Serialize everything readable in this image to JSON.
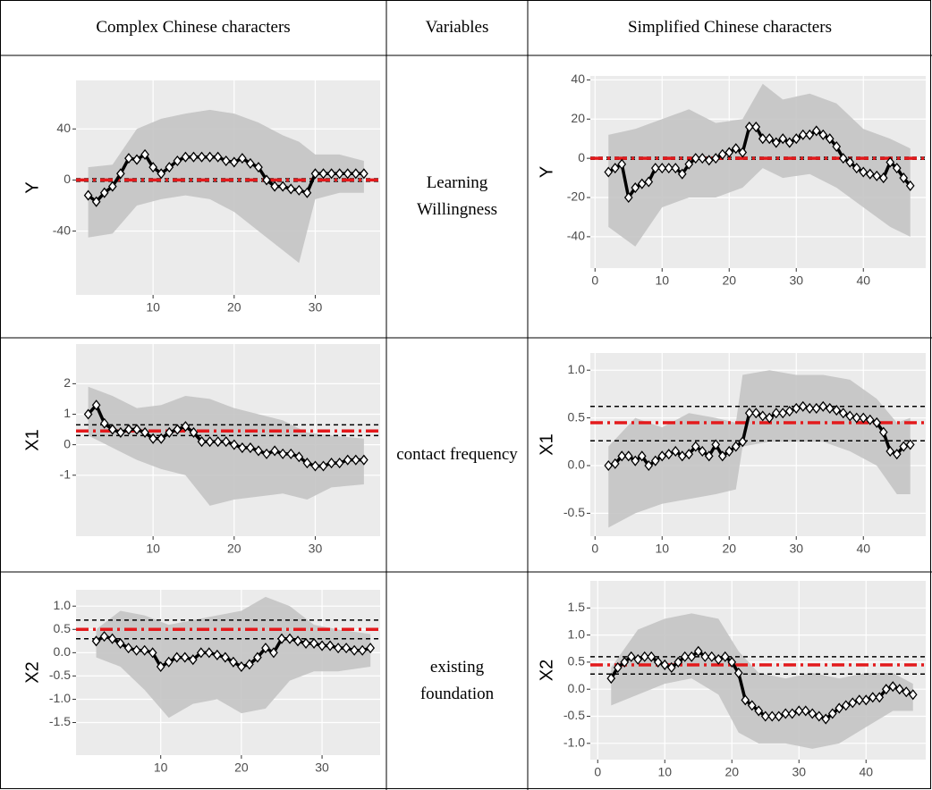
{
  "table": {
    "header": [
      "Complex Chinese characters",
      "Variables",
      "Simplified Chinese characters"
    ],
    "rows": [
      "Learning Willingness",
      "contact frequency",
      "existing foundation"
    ]
  },
  "chart_data": [
    {
      "type": "line",
      "ylabel": "Y",
      "x": [
        2,
        3,
        4,
        5,
        6,
        7,
        8,
        9,
        10,
        11,
        12,
        13,
        14,
        15,
        16,
        17,
        18,
        19,
        20,
        21,
        22,
        23,
        24,
        25,
        26,
        27,
        28,
        29,
        30,
        31,
        32,
        33,
        34,
        35,
        36
      ],
      "series": [
        {
          "color": "#000000",
          "values": [
            -12,
            -17,
            -10,
            -5,
            5,
            17,
            16,
            20,
            10,
            5,
            10,
            15,
            18,
            18,
            18,
            18,
            18,
            15,
            14,
            17,
            13,
            10,
            0,
            -5,
            -5,
            -7,
            -8,
            -10,
            5,
            5,
            5,
            5,
            5,
            5,
            5
          ]
        }
      ],
      "band": {
        "color": "#c4c4c4",
        "x": [
          2,
          5,
          8,
          11,
          14,
          17,
          20,
          23,
          26,
          28,
          30,
          33,
          36
        ],
        "upper": [
          10,
          12,
          40,
          48,
          52,
          55,
          52,
          45,
          35,
          30,
          20,
          20,
          15
        ],
        "lower": [
          -45,
          -42,
          -20,
          -15,
          -12,
          -15,
          -25,
          -40,
          -55,
          -65,
          -15,
          -10,
          -10
        ]
      },
      "hlines": {
        "mean": 0,
        "lower": -1,
        "upper": 1
      },
      "xlim": [
        0.5,
        38
      ],
      "ylim": [
        -90,
        78
      ],
      "xticks": [
        10,
        20,
        30
      ],
      "yticks": [
        -40,
        0,
        40
      ]
    },
    {
      "type": "line",
      "ylabel": "Y",
      "x": [
        2,
        3,
        4,
        5,
        6,
        7,
        8,
        9,
        10,
        11,
        12,
        13,
        14,
        15,
        16,
        17,
        18,
        19,
        20,
        21,
        22,
        23,
        24,
        25,
        26,
        27,
        28,
        29,
        30,
        31,
        32,
        33,
        34,
        35,
        36,
        37,
        38,
        39,
        40,
        41,
        42,
        43,
        44,
        45,
        46,
        47
      ],
      "series": [
        {
          "color": "#000000",
          "values": [
            -7,
            -5,
            -3,
            -20,
            -15,
            -13,
            -12,
            -5,
            -5,
            -5,
            -5,
            -8,
            -3,
            0,
            0,
            -1,
            0,
            2,
            3,
            5,
            3,
            16,
            16,
            10,
            10,
            8,
            10,
            8,
            10,
            12,
            12,
            14,
            12,
            10,
            6,
            0,
            -2,
            -5,
            -7,
            -8,
            -9,
            -10,
            -2,
            -5,
            -10,
            -14
          ]
        }
      ],
      "band": {
        "color": "#c4c4c4",
        "x": [
          2,
          6,
          10,
          14,
          18,
          22,
          25,
          28,
          32,
          36,
          40,
          44,
          47
        ],
        "upper": [
          12,
          15,
          20,
          25,
          18,
          20,
          38,
          30,
          33,
          28,
          15,
          10,
          5
        ],
        "lower": [
          -35,
          -45,
          -25,
          -20,
          -20,
          -15,
          -5,
          -10,
          -8,
          -15,
          -25,
          -35,
          -40
        ]
      },
      "hlines": {
        "mean": 0,
        "lower": -0.5,
        "upper": 0.5
      },
      "xlim": [
        -0.7,
        49.3
      ],
      "ylim": [
        -56,
        42
      ],
      "xticks": [
        0,
        10,
        20,
        30,
        40
      ],
      "yticks": [
        -40,
        -20,
        0,
        20,
        40
      ]
    },
    {
      "type": "line",
      "ylabel": "X1",
      "x": [
        2,
        3,
        4,
        5,
        6,
        7,
        8,
        9,
        10,
        11,
        12,
        13,
        14,
        15,
        16,
        17,
        18,
        19,
        20,
        21,
        22,
        23,
        24,
        25,
        26,
        27,
        28,
        29,
        30,
        31,
        32,
        33,
        34,
        35,
        36
      ],
      "series": [
        {
          "color": "#000000",
          "values": [
            1.0,
            1.3,
            0.7,
            0.5,
            0.4,
            0.5,
            0.5,
            0.4,
            0.2,
            0.2,
            0.4,
            0.5,
            0.6,
            0.4,
            0.1,
            0.1,
            0.1,
            0.1,
            0.0,
            -0.1,
            -0.1,
            -0.2,
            -0.3,
            -0.2,
            -0.3,
            -0.3,
            -0.4,
            -0.6,
            -0.7,
            -0.7,
            -0.6,
            -0.6,
            -0.5,
            -0.5,
            -0.5
          ]
        }
      ],
      "band": {
        "color": "#c4c4c4",
        "x": [
          2,
          5,
          8,
          11,
          14,
          17,
          20,
          23,
          26,
          29,
          32,
          36
        ],
        "upper": [
          1.9,
          1.6,
          1.2,
          1.3,
          1.6,
          1.5,
          1.2,
          1.0,
          0.8,
          0.4,
          0.3,
          0.2
        ],
        "lower": [
          0.3,
          -0.1,
          -0.5,
          -0.8,
          -1.0,
          -2.0,
          -1.8,
          -1.7,
          -1.6,
          -1.8,
          -1.4,
          -1.3
        ]
      },
      "hlines": {
        "mean": 0.45,
        "lower": 0.3,
        "upper": 0.65
      },
      "xlim": [
        0.5,
        38
      ],
      "ylim": [
        -3.0,
        3.3
      ],
      "xticks": [
        10,
        20,
        30
      ],
      "yticks": [
        -1,
        0,
        1,
        2
      ]
    },
    {
      "type": "line",
      "ylabel": "X1",
      "x": [
        2,
        3,
        4,
        5,
        6,
        7,
        8,
        9,
        10,
        11,
        12,
        13,
        14,
        15,
        16,
        17,
        18,
        19,
        20,
        21,
        22,
        23,
        24,
        25,
        26,
        27,
        28,
        29,
        30,
        31,
        32,
        33,
        34,
        35,
        36,
        37,
        38,
        39,
        40,
        41,
        42,
        43,
        44,
        45,
        46,
        47
      ],
      "series": [
        {
          "color": "#000000",
          "values": [
            0.0,
            0.02,
            0.1,
            0.1,
            0.05,
            0.1,
            0.0,
            0.05,
            0.1,
            0.12,
            0.15,
            0.1,
            0.12,
            0.2,
            0.15,
            0.1,
            0.22,
            0.1,
            0.15,
            0.2,
            0.25,
            0.55,
            0.55,
            0.52,
            0.5,
            0.55,
            0.55,
            0.57,
            0.6,
            0.62,
            0.6,
            0.6,
            0.62,
            0.6,
            0.58,
            0.55,
            0.52,
            0.5,
            0.5,
            0.48,
            0.45,
            0.35,
            0.15,
            0.12,
            0.2,
            0.22
          ]
        }
      ],
      "band": {
        "color": "#c4c4c4",
        "x": [
          2,
          6,
          10,
          14,
          18,
          21,
          22,
          26,
          30,
          34,
          38,
          42,
          45,
          47
        ],
        "upper": [
          0.2,
          0.5,
          0.4,
          0.55,
          0.5,
          0.45,
          0.95,
          1.0,
          0.95,
          0.95,
          0.9,
          0.7,
          0.45,
          0.5
        ],
        "lower": [
          -0.65,
          -0.5,
          -0.4,
          -0.35,
          -0.3,
          -0.25,
          0.2,
          0.25,
          0.25,
          0.25,
          0.15,
          0.0,
          -0.3,
          -0.3
        ]
      },
      "hlines": {
        "mean": 0.45,
        "lower": 0.26,
        "upper": 0.62
      },
      "xlim": [
        -0.7,
        49.3
      ],
      "ylim": [
        -0.74,
        1.18
      ],
      "xticks": [
        0,
        10,
        20,
        30,
        40
      ],
      "yticks": [
        {
          "value": -0.5,
          "label": "-0.5"
        },
        {
          "value": 0,
          "label": "0.0"
        },
        {
          "value": 0.5,
          "label": "0.5"
        },
        {
          "value": 1,
          "label": "1.0"
        }
      ]
    },
    {
      "type": "line",
      "ylabel": "X2",
      "x": [
        2,
        3,
        4,
        5,
        6,
        7,
        8,
        9,
        10,
        11,
        12,
        13,
        14,
        15,
        16,
        17,
        18,
        19,
        20,
        21,
        22,
        23,
        24,
        25,
        26,
        27,
        28,
        29,
        30,
        31,
        32,
        33,
        34,
        35,
        36
      ],
      "series": [
        {
          "color": "#000000",
          "values": [
            0.25,
            0.35,
            0.3,
            0.2,
            0.1,
            0.05,
            0.05,
            0.0,
            -0.3,
            -0.2,
            -0.1,
            -0.1,
            -0.15,
            0.0,
            0.0,
            -0.05,
            -0.1,
            -0.2,
            -0.3,
            -0.25,
            -0.1,
            0.1,
            0.0,
            0.3,
            0.3,
            0.25,
            0.2,
            0.2,
            0.15,
            0.15,
            0.1,
            0.1,
            0.05,
            0.05,
            0.1
          ]
        }
      ],
      "band": {
        "color": "#c4c4c4",
        "x": [
          2,
          5,
          8,
          11,
          14,
          17,
          20,
          23,
          26,
          29,
          32,
          36
        ],
        "upper": [
          0.5,
          0.9,
          0.8,
          0.6,
          0.7,
          0.8,
          0.9,
          1.2,
          1.0,
          0.6,
          0.5,
          0.4
        ],
        "lower": [
          -0.1,
          -0.3,
          -0.8,
          -1.4,
          -1.1,
          -1.0,
          -1.3,
          -1.2,
          -0.6,
          -0.4,
          -0.4,
          -0.3
        ]
      },
      "hlines": {
        "mean": 0.5,
        "lower": 0.3,
        "upper": 0.7
      },
      "xlim": [
        -0.5,
        37.2
      ],
      "ylim": [
        -2.2,
        1.35
      ],
      "xticks": [
        10,
        20,
        30
      ],
      "yticks": [
        {
          "value": -1.5,
          "label": "-1.5"
        },
        {
          "value": -1,
          "label": "-1.0"
        },
        {
          "value": -0.5,
          "label": "-0.5"
        },
        {
          "value": 0,
          "label": "0.0"
        },
        {
          "value": 0.5,
          "label": "0.5"
        },
        {
          "value": 1,
          "label": "1.0"
        }
      ]
    },
    {
      "type": "line",
      "ylabel": "X2",
      "x": [
        2,
        3,
        4,
        5,
        6,
        7,
        8,
        9,
        10,
        11,
        12,
        13,
        14,
        15,
        16,
        17,
        18,
        19,
        20,
        21,
        22,
        23,
        24,
        25,
        26,
        27,
        28,
        29,
        30,
        31,
        32,
        33,
        34,
        35,
        36,
        37,
        38,
        39,
        40,
        41,
        42,
        43,
        44,
        45,
        46,
        47
      ],
      "series": [
        {
          "color": "#000000",
          "values": [
            0.2,
            0.4,
            0.5,
            0.6,
            0.55,
            0.6,
            0.6,
            0.5,
            0.45,
            0.4,
            0.5,
            0.6,
            0.6,
            0.7,
            0.6,
            0.6,
            0.55,
            0.6,
            0.5,
            0.3,
            -0.2,
            -0.3,
            -0.4,
            -0.5,
            -0.5,
            -0.5,
            -0.45,
            -0.45,
            -0.4,
            -0.4,
            -0.45,
            -0.5,
            -0.55,
            -0.45,
            -0.35,
            -0.3,
            -0.25,
            -0.2,
            -0.2,
            -0.15,
            -0.15,
            0.0,
            0.05,
            0.0,
            -0.05,
            -0.1
          ]
        }
      ],
      "band": {
        "color": "#c4c4c4",
        "x": [
          2,
          6,
          10,
          14,
          18,
          21,
          24,
          28,
          32,
          36,
          40,
          44,
          47
        ],
        "upper": [
          0.4,
          1.1,
          1.3,
          1.4,
          1.3,
          0.7,
          0.3,
          0.2,
          0.3,
          0.2,
          0.3,
          0.3,
          0.1
        ],
        "lower": [
          -0.3,
          -0.1,
          0.1,
          0.2,
          -0.1,
          -0.8,
          -1.0,
          -1.0,
          -1.1,
          -1.0,
          -0.7,
          -0.4,
          -0.4
        ]
      },
      "hlines": {
        "mean": 0.45,
        "lower": 0.28,
        "upper": 0.6
      },
      "xlim": [
        -1.1,
        48.9
      ],
      "ylim": [
        -1.3,
        2.0
      ],
      "xticks": [
        0,
        10,
        20,
        30,
        40
      ],
      "yticks": [
        {
          "value": -1,
          "label": "-1.0"
        },
        {
          "value": -0.5,
          "label": "-0.5"
        },
        {
          "value": 0,
          "label": "0.0"
        },
        {
          "value": 0.5,
          "label": "0.5"
        },
        {
          "value": 1,
          "label": "1.0"
        },
        {
          "value": 1.5,
          "label": "1.5"
        }
      ]
    }
  ]
}
